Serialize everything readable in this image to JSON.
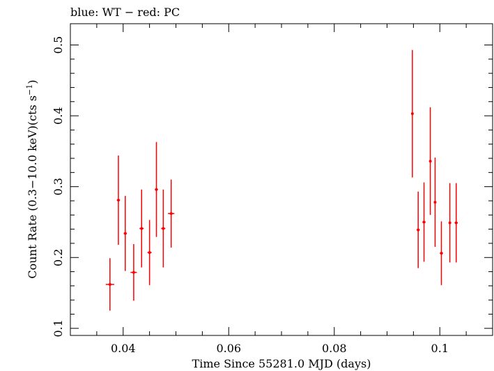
{
  "chart_data": {
    "type": "scatter",
    "title": "blue: WT − red: PC",
    "xlabel": "Time Since 55281.0 MJD (days)",
    "ylabel_main": "Count Rate (0.3−10.0 keV)(cts s",
    "ylabel_sup": "−1",
    "ylabel_close": ")",
    "xlim": [
      0.03,
      0.11
    ],
    "ylim": [
      0.09,
      0.53
    ],
    "x_ticks": [
      0.04,
      0.06,
      0.08,
      0.1
    ],
    "x_tick_labels": [
      "0.04",
      "0.06",
      "0.08",
      "0.1"
    ],
    "y_ticks": [
      0.1,
      0.2,
      0.3,
      0.4,
      0.5
    ],
    "y_tick_labels": [
      "0.1",
      "0.2",
      "0.3",
      "0.4",
      "0.5"
    ],
    "grid": false,
    "series": [
      {
        "color": "#ff0000",
        "points": [
          {
            "x": 0.0375,
            "xerr": 0.0008,
            "y": 0.162,
            "yerr_lo": 0.037,
            "yerr_hi": 0.037
          },
          {
            "x": 0.0391,
            "xerr": 0.0003,
            "y": 0.281,
            "yerr_lo": 0.063,
            "yerr_hi": 0.063
          },
          {
            "x": 0.0404,
            "xerr": 0.0003,
            "y": 0.234,
            "yerr_lo": 0.053,
            "yerr_hi": 0.053
          },
          {
            "x": 0.042,
            "xerr": 0.0006,
            "y": 0.179,
            "yerr_lo": 0.04,
            "yerr_hi": 0.04
          },
          {
            "x": 0.0435,
            "xerr": 0.0004,
            "y": 0.241,
            "yerr_lo": 0.055,
            "yerr_hi": 0.055
          },
          {
            "x": 0.045,
            "xerr": 0.0004,
            "y": 0.207,
            "yerr_lo": 0.046,
            "yerr_hi": 0.046
          },
          {
            "x": 0.0463,
            "xerr": 0.0003,
            "y": 0.296,
            "yerr_lo": 0.067,
            "yerr_hi": 0.067
          },
          {
            "x": 0.0476,
            "xerr": 0.0004,
            "y": 0.241,
            "yerr_lo": 0.055,
            "yerr_hi": 0.055
          },
          {
            "x": 0.0491,
            "xerr": 0.0006,
            "y": 0.262,
            "yerr_lo": 0.048,
            "yerr_hi": 0.048
          },
          {
            "x": 0.0948,
            "xerr": 0.0002,
            "y": 0.403,
            "yerr_lo": 0.09,
            "yerr_hi": 0.09
          },
          {
            "x": 0.0959,
            "xerr": 0.0003,
            "y": 0.239,
            "yerr_lo": 0.054,
            "yerr_hi": 0.054
          },
          {
            "x": 0.097,
            "xerr": 0.0003,
            "y": 0.25,
            "yerr_lo": 0.056,
            "yerr_hi": 0.056
          },
          {
            "x": 0.0982,
            "xerr": 0.0002,
            "y": 0.336,
            "yerr_lo": 0.076,
            "yerr_hi": 0.076
          },
          {
            "x": 0.0991,
            "xerr": 0.0002,
            "y": 0.278,
            "yerr_lo": 0.063,
            "yerr_hi": 0.063
          },
          {
            "x": 0.1003,
            "xerr": 0.0003,
            "y": 0.206,
            "yerr_lo": 0.045,
            "yerr_hi": 0.045
          },
          {
            "x": 0.1019,
            "xerr": 0.0002,
            "y": 0.249,
            "yerr_lo": 0.056,
            "yerr_hi": 0.056
          },
          {
            "x": 0.1031,
            "xerr": 0.0003,
            "y": 0.249,
            "yerr_lo": 0.056,
            "yerr_hi": 0.056
          }
        ]
      }
    ]
  }
}
